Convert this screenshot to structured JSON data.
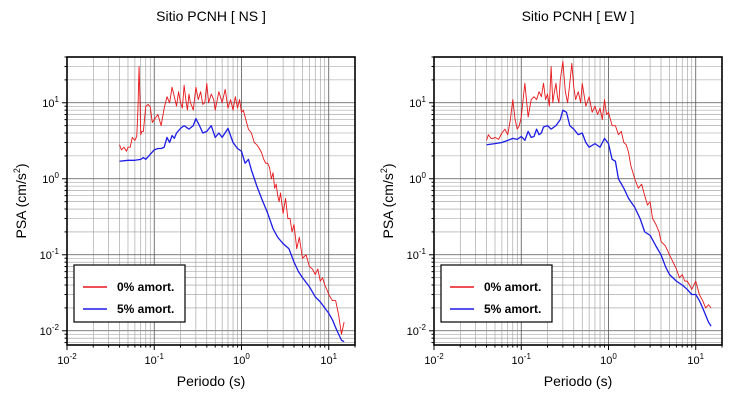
{
  "chart_data": [
    {
      "type": "line",
      "title": "Sitio PCNH [ NS ]",
      "xlabel": "Periodo (s)",
      "ylabel_base": "PSA (cm/s",
      "ylabel_sup": "2",
      "ylabel_end": ")",
      "x_scale": "log",
      "y_scale": "log",
      "xlim": [
        0.01,
        20
      ],
      "ylim": [
        0.0065,
        40
      ],
      "grid": true,
      "legend_position": "bottom-left",
      "x_ticks": [
        {
          "value": 0.01,
          "base": "10",
          "exp": "-2"
        },
        {
          "value": 0.1,
          "base": "10",
          "exp": "-1"
        },
        {
          "value": 1,
          "base": "10",
          "exp": "0"
        },
        {
          "value": 10,
          "base": "10",
          "exp": "1"
        }
      ],
      "y_ticks": [
        {
          "value": 0.01,
          "base": "10",
          "exp": "-2"
        },
        {
          "value": 0.1,
          "base": "10",
          "exp": "-1"
        },
        {
          "value": 1,
          "base": "10",
          "exp": "0"
        },
        {
          "value": 10,
          "base": "10",
          "exp": "1"
        }
      ],
      "series": [
        {
          "name": "0% amort.",
          "color": "#e8171b",
          "x": [
            0.04,
            0.042,
            0.045,
            0.048,
            0.05,
            0.053,
            0.056,
            0.06,
            0.063,
            0.065,
            0.067,
            0.069,
            0.07,
            0.072,
            0.075,
            0.08,
            0.085,
            0.09,
            0.095,
            0.1,
            0.11,
            0.12,
            0.13,
            0.14,
            0.15,
            0.16,
            0.17,
            0.18,
            0.19,
            0.2,
            0.21,
            0.22,
            0.23,
            0.24,
            0.25,
            0.26,
            0.27,
            0.28,
            0.3,
            0.32,
            0.34,
            0.36,
            0.38,
            0.4,
            0.42,
            0.45,
            0.48,
            0.5,
            0.55,
            0.6,
            0.65,
            0.7,
            0.75,
            0.8,
            0.85,
            0.9,
            0.95,
            1.0,
            1.05,
            1.1,
            1.2,
            1.3,
            1.4,
            1.5,
            1.6,
            1.7,
            1.8,
            1.9,
            2.0,
            2.1,
            2.2,
            2.3,
            2.4,
            2.5,
            2.6,
            2.7,
            2.8,
            3.0,
            3.2,
            3.4,
            3.6,
            3.8,
            4.0,
            4.3,
            4.6,
            5.0,
            5.5,
            6.0,
            6.5,
            7.0,
            7.5,
            8.0,
            8.5,
            9.0,
            9.5,
            10,
            11,
            12,
            13,
            14,
            15
          ],
          "y": [
            2.8,
            2.4,
            2.6,
            2.3,
            2.6,
            2.6,
            3.5,
            3.2,
            3.6,
            8.0,
            30.0,
            8.5,
            3.8,
            4.2,
            4.2,
            9.0,
            9.5,
            8.8,
            5.5,
            6.0,
            7.0,
            5.0,
            8.5,
            12.0,
            10.0,
            16.0,
            12.0,
            9.0,
            14.0,
            10.0,
            8.5,
            17.0,
            11.0,
            8.0,
            13.0,
            10.0,
            9.0,
            8.0,
            16.0,
            11.0,
            14.0,
            9.5,
            10.0,
            18.0,
            10.0,
            13.0,
            11.0,
            8.0,
            14.0,
            10.0,
            15.0,
            8.5,
            11.0,
            8.0,
            12.0,
            8.5,
            11.0,
            7.5,
            8.0,
            6.5,
            4.5,
            4.0,
            3.0,
            2.8,
            2.5,
            2.2,
            1.8,
            1.6,
            1.6,
            1.4,
            1.0,
            1.2,
            0.75,
            0.85,
            0.6,
            0.5,
            0.65,
            0.35,
            0.55,
            0.3,
            0.3,
            0.2,
            0.25,
            0.12,
            0.17,
            0.09,
            0.1,
            0.07,
            0.065,
            0.055,
            0.065,
            0.045,
            0.05,
            0.04,
            0.035,
            0.03,
            0.025,
            0.025,
            0.016,
            0.009,
            0.013
          ]
        },
        {
          "name": "5% amort.",
          "color": "#1c1ce6",
          "x": [
            0.04,
            0.05,
            0.06,
            0.07,
            0.075,
            0.08,
            0.09,
            0.1,
            0.11,
            0.12,
            0.13,
            0.14,
            0.15,
            0.16,
            0.17,
            0.18,
            0.2,
            0.22,
            0.25,
            0.28,
            0.3,
            0.33,
            0.36,
            0.4,
            0.45,
            0.5,
            0.55,
            0.6,
            0.7,
            0.8,
            0.9,
            1.0,
            1.1,
            1.2,
            1.3,
            1.5,
            1.7,
            2.0,
            2.3,
            2.6,
            3.0,
            3.5,
            4.0,
            4.5,
            5.0,
            6.0,
            7.0,
            8.0,
            9.0,
            10,
            11,
            12,
            13,
            14,
            15
          ],
          "y": [
            1.7,
            1.75,
            1.75,
            1.8,
            1.9,
            1.8,
            2.1,
            2.4,
            2.5,
            2.5,
            2.6,
            3.5,
            3.0,
            3.7,
            3.4,
            4.0,
            4.6,
            5.0,
            4.5,
            5.0,
            6.2,
            5.0,
            4.0,
            4.2,
            5.0,
            3.5,
            4.0,
            3.5,
            4.6,
            3.0,
            2.5,
            2.3,
            1.6,
            1.8,
            1.3,
            0.8,
            0.55,
            0.35,
            0.22,
            0.17,
            0.14,
            0.12,
            0.08,
            0.06,
            0.05,
            0.038,
            0.028,
            0.024,
            0.02,
            0.017,
            0.014,
            0.011,
            0.009,
            0.0075,
            0.0072
          ]
        }
      ]
    },
    {
      "type": "line",
      "title": "Sitio PCNH [ EW ]",
      "xlabel": "Periodo (s)",
      "ylabel_base": "PSA (cm/s",
      "ylabel_sup": "2",
      "ylabel_end": ")",
      "x_scale": "log",
      "y_scale": "log",
      "xlim": [
        0.01,
        20
      ],
      "ylim": [
        0.0065,
        40
      ],
      "grid": true,
      "legend_position": "bottom-left",
      "x_ticks": [
        {
          "value": 0.01,
          "base": "10",
          "exp": "-2"
        },
        {
          "value": 0.1,
          "base": "10",
          "exp": "-1"
        },
        {
          "value": 1,
          "base": "10",
          "exp": "0"
        },
        {
          "value": 10,
          "base": "10",
          "exp": "1"
        }
      ],
      "y_ticks": [
        {
          "value": 0.01,
          "base": "10",
          "exp": "-2"
        },
        {
          "value": 0.1,
          "base": "10",
          "exp": "-1"
        },
        {
          "value": 1,
          "base": "10",
          "exp": "0"
        },
        {
          "value": 10,
          "base": "10",
          "exp": "1"
        }
      ],
      "series": [
        {
          "name": "0% amort.",
          "color": "#e8171b",
          "x": [
            0.04,
            0.042,
            0.045,
            0.048,
            0.05,
            0.055,
            0.06,
            0.065,
            0.07,
            0.075,
            0.08,
            0.085,
            0.09,
            0.095,
            0.1,
            0.11,
            0.12,
            0.13,
            0.14,
            0.15,
            0.16,
            0.17,
            0.18,
            0.19,
            0.2,
            0.21,
            0.22,
            0.23,
            0.24,
            0.25,
            0.26,
            0.27,
            0.28,
            0.3,
            0.32,
            0.34,
            0.36,
            0.38,
            0.4,
            0.42,
            0.45,
            0.48,
            0.5,
            0.55,
            0.6,
            0.65,
            0.7,
            0.75,
            0.8,
            0.85,
            0.9,
            0.95,
            1.0,
            1.1,
            1.2,
            1.3,
            1.4,
            1.5,
            1.6,
            1.7,
            1.8,
            2.0,
            2.2,
            2.4,
            2.6,
            2.8,
            3.0,
            3.2,
            3.5,
            3.8,
            4.0,
            4.5,
            5.0,
            5.5,
            6.0,
            6.5,
            7.0,
            7.5,
            8.0,
            8.5,
            9.0,
            10,
            11,
            12,
            13,
            14,
            15
          ],
          "y": [
            3.2,
            3.8,
            3.4,
            3.4,
            3.5,
            3.3,
            4.0,
            4.5,
            3.8,
            6.0,
            11.0,
            6.0,
            4.5,
            5.0,
            6.5,
            18.0,
            6.5,
            11.0,
            12.0,
            11.0,
            14.0,
            12.0,
            18.0,
            11.0,
            13.0,
            9.0,
            30.0,
            10.0,
            14.0,
            18.0,
            12.0,
            10.0,
            20.0,
            35.0,
            14.0,
            10.0,
            18.0,
            33.0,
            16.0,
            11.0,
            14.0,
            10.0,
            18.0,
            9.0,
            12.0,
            7.5,
            9.0,
            7.0,
            8.5,
            6.0,
            11.0,
            7.0,
            7.5,
            5.0,
            5.0,
            3.8,
            4.2,
            3.0,
            2.8,
            2.2,
            1.5,
            1.0,
            0.75,
            0.85,
            0.6,
            0.45,
            0.5,
            0.3,
            0.25,
            0.2,
            0.15,
            0.13,
            0.1,
            0.08,
            0.065,
            0.05,
            0.055,
            0.045,
            0.045,
            0.04,
            0.035,
            0.045,
            0.03,
            0.025,
            0.02,
            0.022,
            0.02
          ]
        },
        {
          "name": "5% amort.",
          "color": "#1c1ce6",
          "x": [
            0.04,
            0.05,
            0.06,
            0.07,
            0.08,
            0.09,
            0.1,
            0.11,
            0.12,
            0.13,
            0.14,
            0.15,
            0.16,
            0.17,
            0.18,
            0.2,
            0.22,
            0.25,
            0.28,
            0.3,
            0.33,
            0.36,
            0.4,
            0.45,
            0.5,
            0.55,
            0.6,
            0.7,
            0.8,
            0.9,
            1.0,
            1.1,
            1.2,
            1.3,
            1.5,
            1.7,
            2.0,
            2.3,
            2.6,
            3.0,
            3.5,
            4.0,
            4.5,
            5.0,
            6.0,
            7.0,
            8.0,
            9.0,
            10,
            11,
            12,
            13,
            14,
            15
          ],
          "y": [
            2.8,
            2.9,
            3.0,
            3.2,
            3.4,
            3.3,
            3.6,
            3.2,
            4.2,
            3.5,
            3.6,
            4.5,
            3.8,
            4.0,
            4.8,
            5.0,
            4.5,
            5.0,
            6.0,
            8.0,
            7.5,
            5.0,
            4.5,
            3.8,
            4.0,
            3.0,
            2.6,
            2.9,
            2.6,
            3.4,
            2.9,
            1.8,
            1.7,
            1.0,
            0.75,
            0.55,
            0.42,
            0.3,
            0.2,
            0.18,
            0.13,
            0.1,
            0.07,
            0.055,
            0.045,
            0.04,
            0.035,
            0.03,
            0.03,
            0.025,
            0.02,
            0.016,
            0.013,
            0.0115
          ]
        }
      ]
    }
  ]
}
